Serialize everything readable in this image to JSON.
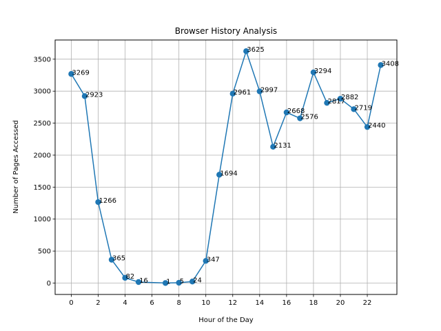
{
  "chart_data": {
    "type": "line",
    "title": "Browser History Analysis",
    "xlabel": "Hour of the Day",
    "ylabel": "Number of Pages Accessed",
    "x": [
      0,
      1,
      2,
      3,
      4,
      5,
      7,
      8,
      9,
      10,
      11,
      12,
      13,
      14,
      15,
      16,
      17,
      18,
      19,
      20,
      21,
      22,
      23
    ],
    "values": [
      3269,
      2923,
      1266,
      365,
      82,
      16,
      1,
      5,
      24,
      347,
      1694,
      2961,
      3625,
      2997,
      2131,
      2668,
      2576,
      3294,
      2817,
      2882,
      2719,
      2440,
      3408
    ],
    "xlim": [
      -1.2,
      24.2
    ],
    "ylim": [
      -178,
      3800
    ],
    "xticks": [
      0,
      2,
      4,
      6,
      8,
      10,
      12,
      14,
      16,
      18,
      20,
      22
    ],
    "yticks": [
      0,
      500,
      1000,
      1500,
      2000,
      2500,
      3000,
      3500
    ],
    "grid": true,
    "line_color": "#1f77b4"
  }
}
